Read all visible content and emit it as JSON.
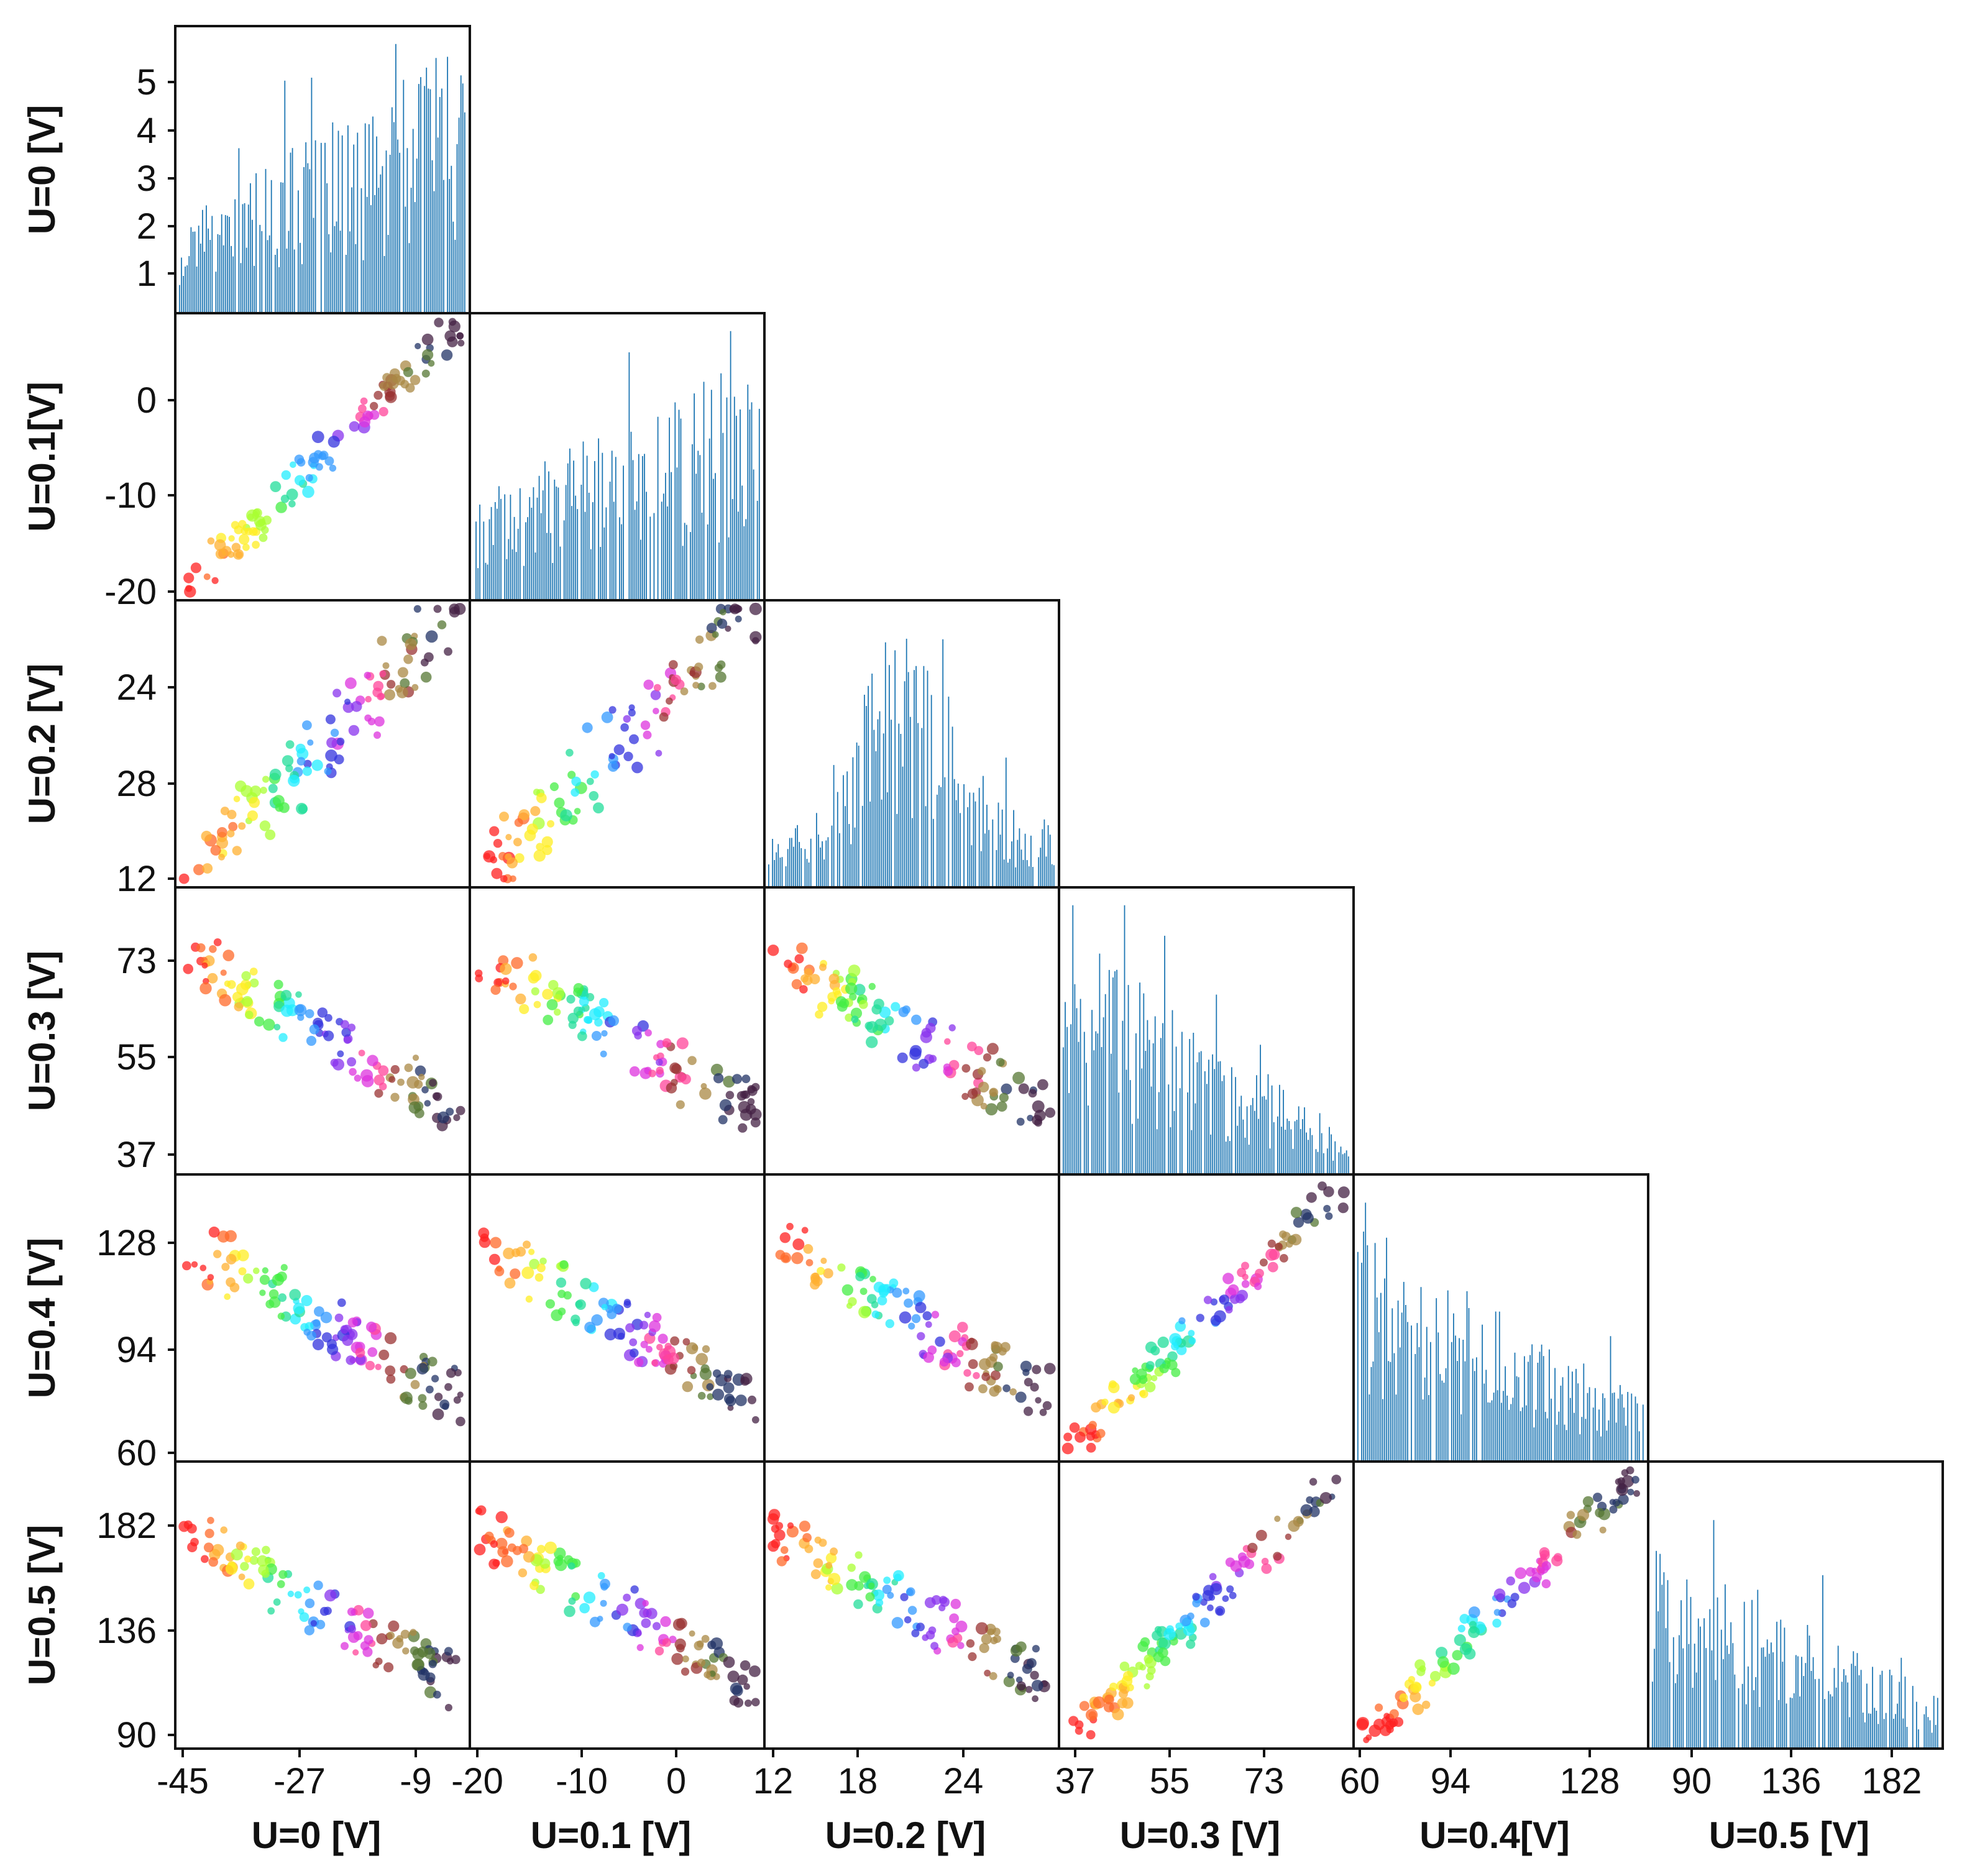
{
  "chart_data": {
    "type": "scatter",
    "layout": "pair-plot-lower-triangle",
    "variables": [
      "U=0 [V]",
      "U=0.1[V]",
      "U=0.2 [V]",
      "U=0.3 [V]",
      "U=0.4 [V]",
      "U=0.5 [V]"
    ],
    "bottom_axis_labels": [
      "U=0 [V]",
      "U=0.1 [V]",
      "U=0.2 [V]",
      "U=0.3 [V]",
      "U=0.4[V]",
      "U=0.5 [V]"
    ],
    "left_axis_labels": [
      "U=0 [V]",
      "U=0.1[V]",
      "U=0.2 [V]",
      "U=0.3 [V]",
      "U=0.4 [V]",
      "U=0.5 [V]"
    ],
    "x_ticks": [
      [
        "-45",
        "-27",
        "-9"
      ],
      [
        "-20",
        "-10",
        "0"
      ],
      [
        "12",
        "18",
        "24"
      ],
      [
        "37",
        "55",
        "73"
      ],
      [
        "60",
        "94",
        "128"
      ],
      [
        "90",
        "136",
        "182"
      ]
    ],
    "y_ticks": [
      [
        "5",
        "4",
        "3",
        "2",
        "1"
      ],
      [
        "0",
        "-10",
        "-20"
      ],
      [
        "24",
        "28",
        "12"
      ],
      [
        "73",
        "55",
        "37"
      ],
      [
        "128",
        "94",
        "60"
      ],
      [
        "182",
        "136",
        "90"
      ]
    ],
    "x_ranges": [
      [
        -47,
        0
      ],
      [
        -20,
        10
      ],
      [
        12,
        30
      ],
      [
        35,
        90
      ],
      [
        60,
        150
      ],
      [
        75,
        212
      ]
    ],
    "hist_max_count": 5.8,
    "diagonal_type": "histogram",
    "histogram_color": "#1f77b4",
    "point_palette": [
      "#ff2020",
      "#ff6a2a",
      "#ffb030",
      "#ffee22",
      "#aaff33",
      "#44ee44",
      "#22dd99",
      "#22eeff",
      "#3399ff",
      "#3333dd",
      "#8833ee",
      "#dd33dd",
      "#ff4499",
      "#993333",
      "#aa8844",
      "#557733",
      "#223366",
      "#442244"
    ],
    "grid": false,
    "legend": "none"
  }
}
